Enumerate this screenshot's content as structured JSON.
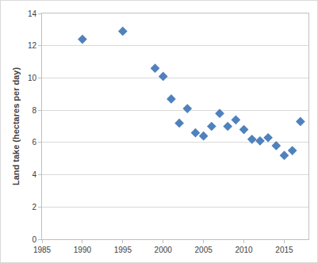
{
  "chart_data": {
    "type": "scatter",
    "y_label": "Land take (hectares per day)",
    "x": [
      1990,
      1995,
      1999,
      2000,
      2001,
      2002,
      2003,
      2004,
      2005,
      2006,
      2007,
      2008,
      2009,
      2010,
      2011,
      2012,
      2013,
      2014,
      2015,
      2016,
      2017
    ],
    "values": [
      12.4,
      12.9,
      10.6,
      10.1,
      8.7,
      7.2,
      8.1,
      6.6,
      6.4,
      7.0,
      7.8,
      7.0,
      7.4,
      6.8,
      6.2,
      6.1,
      6.3,
      5.8,
      5.2,
      5.5,
      7.3
    ],
    "color": "#4f81bd",
    "marker": "diamond",
    "xlim": [
      1985,
      2018
    ],
    "xticks": [
      1985,
      1990,
      1995,
      2000,
      2005,
      2010,
      2015
    ],
    "ylim": [
      0,
      14
    ],
    "yticks": [
      0,
      2,
      4,
      6,
      8,
      10,
      12,
      14
    ],
    "grid": true
  }
}
